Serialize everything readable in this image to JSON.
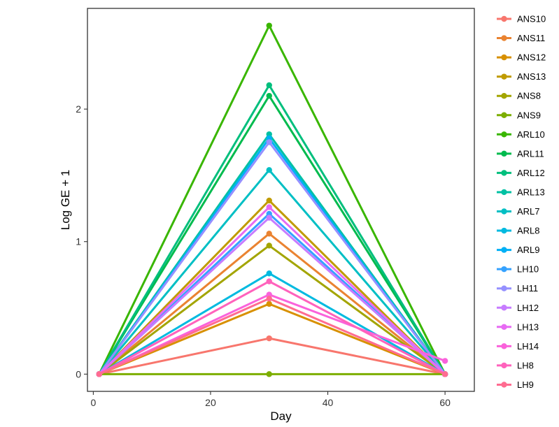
{
  "chart_data": {
    "type": "line",
    "title": "",
    "xlabel": "Day",
    "ylabel": "Log GE + 1",
    "xlim": [
      -1,
      65
    ],
    "ylim": [
      -0.13,
      2.76
    ],
    "xticks": [
      0,
      20,
      40,
      60
    ],
    "yticks": [
      0,
      1,
      2
    ],
    "x": [
      1,
      30,
      60
    ],
    "grid": false,
    "legend_position": "right",
    "series": [
      {
        "name": "ANS10",
        "color": "#F8766D",
        "values": [
          0,
          0.27,
          0
        ]
      },
      {
        "name": "ANS11",
        "color": "#EA8331",
        "values": [
          0,
          1.06,
          0
        ]
      },
      {
        "name": "ANS12",
        "color": "#D89000",
        "values": [
          0,
          0.53,
          0
        ]
      },
      {
        "name": "ANS13",
        "color": "#C09B00",
        "values": [
          0,
          1.31,
          0
        ]
      },
      {
        "name": "ANS8",
        "color": "#A3A500",
        "values": [
          0,
          0.97,
          0
        ]
      },
      {
        "name": "ANS9",
        "color": "#7CAE00",
        "values": [
          0,
          0,
          0
        ]
      },
      {
        "name": "ARL10",
        "color": "#39B600",
        "values": [
          0,
          2.63,
          0
        ]
      },
      {
        "name": "ARL11",
        "color": "#00BB4E",
        "values": [
          0,
          2.1,
          0
        ]
      },
      {
        "name": "ARL12",
        "color": "#00BF7D",
        "values": [
          0,
          2.18,
          0
        ]
      },
      {
        "name": "ARL13",
        "color": "#00C1A3",
        "values": [
          0,
          1.81,
          0
        ]
      },
      {
        "name": "ARL7",
        "color": "#00BFC4",
        "values": [
          0,
          1.54,
          0
        ]
      },
      {
        "name": "ARL8",
        "color": "#00BAE0",
        "values": [
          0,
          0.76,
          0
        ]
      },
      {
        "name": "ARL9",
        "color": "#00B0F6",
        "values": [
          0,
          1.78,
          0
        ]
      },
      {
        "name": "LH10",
        "color": "#35A2FF",
        "values": [
          0,
          1.21,
          0
        ]
      },
      {
        "name": "LH11",
        "color": "#9590FF",
        "values": [
          0,
          1.75,
          0
        ]
      },
      {
        "name": "LH12",
        "color": "#C77CFF",
        "values": [
          0,
          1.18,
          0
        ]
      },
      {
        "name": "LH13",
        "color": "#E76BF3",
        "values": [
          0,
          1.26,
          0
        ]
      },
      {
        "name": "LH14",
        "color": "#FA62DB",
        "values": [
          0,
          0.6,
          0.1
        ]
      },
      {
        "name": "LH8",
        "color": "#FF62BC",
        "values": [
          0,
          0.7,
          0
        ]
      },
      {
        "name": "LH9",
        "color": "#FF6C91",
        "values": [
          0,
          0.57,
          0
        ]
      }
    ]
  }
}
